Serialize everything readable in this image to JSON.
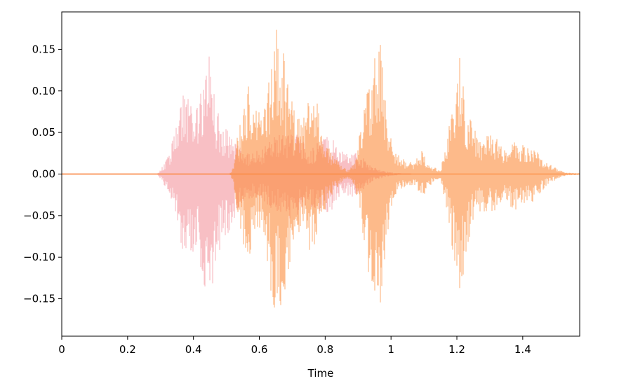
{
  "chart_data": {
    "type": "area",
    "title": "",
    "xlabel": "Time",
    "ylabel": "",
    "xlim": [
      0,
      1.573
    ],
    "ylim": [
      -0.195,
      0.195
    ],
    "x_ticks": [
      0,
      0.2,
      0.4,
      0.6,
      0.8,
      1,
      1.2,
      1.4
    ],
    "x_tick_labels": [
      "0",
      "0.2",
      "0.4",
      "0.6",
      "0.8",
      "1",
      "1.2",
      "1.4"
    ],
    "y_ticks": [
      0.15,
      0.1,
      0.05,
      0.0,
      -0.05,
      -0.1,
      -0.15
    ],
    "y_tick_labels": [
      "0.15",
      "0.10",
      "0.05",
      "0.00",
      "−0.05",
      "−0.10",
      "−0.15"
    ],
    "grid": false,
    "legend": "none",
    "series": [
      {
        "color": "#f4949c",
        "opacity": 0.6,
        "extent": [
          0,
          1.06
        ],
        "envelope_x": [
          0.0,
          0.29,
          0.31,
          0.33,
          0.35,
          0.37,
          0.39,
          0.41,
          0.43,
          0.45,
          0.47,
          0.49,
          0.51,
          0.53,
          0.55,
          0.57,
          0.6,
          0.63,
          0.66,
          0.69,
          0.72,
          0.75,
          0.78,
          0.8,
          0.82,
          0.84,
          0.86,
          0.88,
          0.9,
          0.92,
          0.94,
          0.97,
          1.0,
          1.03,
          1.06
        ],
        "envelope_top": [
          0.0,
          0.0,
          0.012,
          0.03,
          0.06,
          0.105,
          0.1,
          0.08,
          0.11,
          0.158,
          0.08,
          0.06,
          0.05,
          0.04,
          0.03,
          0.025,
          0.03,
          0.04,
          0.05,
          0.055,
          0.05,
          0.03,
          0.04,
          0.045,
          0.045,
          0.03,
          0.025,
          0.028,
          0.025,
          0.018,
          0.01,
          0.005,
          0.002,
          0.001,
          0.0
        ],
        "envelope_bottom": [
          0.0,
          0.0,
          0.012,
          0.03,
          0.06,
          0.1,
          0.1,
          0.085,
          0.13,
          0.158,
          0.11,
          0.08,
          0.07,
          0.05,
          0.04,
          0.03,
          0.03,
          0.04,
          0.05,
          0.055,
          0.05,
          0.04,
          0.045,
          0.05,
          0.045,
          0.03,
          0.025,
          0.03,
          0.025,
          0.018,
          0.01,
          0.005,
          0.002,
          0.001,
          0.0
        ]
      },
      {
        "color": "#fb8c3c",
        "opacity": 0.6,
        "extent": [
          0,
          1.573
        ],
        "envelope_x": [
          0.0,
          0.51,
          0.52,
          0.53,
          0.55,
          0.57,
          0.59,
          0.61,
          0.63,
          0.65,
          0.67,
          0.69,
          0.71,
          0.73,
          0.75,
          0.77,
          0.79,
          0.81,
          0.83,
          0.85,
          0.87,
          0.89,
          0.91,
          0.93,
          0.95,
          0.97,
          0.99,
          1.01,
          1.03,
          1.05,
          1.07,
          1.09,
          1.11,
          1.13,
          1.15,
          1.17,
          1.19,
          1.21,
          1.23,
          1.25,
          1.27,
          1.29,
          1.31,
          1.33,
          1.35,
          1.37,
          1.39,
          1.41,
          1.43,
          1.45,
          1.47,
          1.49,
          1.51,
          1.53,
          1.573
        ],
        "envelope_top": [
          0.0,
          0.0,
          0.01,
          0.04,
          0.085,
          0.115,
          0.08,
          0.07,
          0.13,
          0.178,
          0.155,
          0.1,
          0.075,
          0.07,
          0.09,
          0.1,
          0.05,
          0.035,
          0.02,
          0.01,
          0.005,
          0.015,
          0.06,
          0.11,
          0.14,
          0.16,
          0.06,
          0.03,
          0.02,
          0.015,
          0.015,
          0.03,
          0.02,
          0.008,
          0.006,
          0.045,
          0.105,
          0.15,
          0.08,
          0.055,
          0.045,
          0.05,
          0.045,
          0.04,
          0.03,
          0.045,
          0.04,
          0.04,
          0.035,
          0.025,
          0.015,
          0.01,
          0.005,
          0.002,
          0.001
        ],
        "envelope_bottom": [
          0.0,
          0.0,
          0.01,
          0.04,
          0.085,
          0.1,
          0.08,
          0.06,
          0.13,
          0.178,
          0.155,
          0.12,
          0.08,
          0.075,
          0.09,
          0.1,
          0.05,
          0.035,
          0.02,
          0.01,
          0.005,
          0.015,
          0.06,
          0.12,
          0.15,
          0.162,
          0.07,
          0.03,
          0.02,
          0.015,
          0.015,
          0.03,
          0.02,
          0.008,
          0.006,
          0.045,
          0.105,
          0.15,
          0.09,
          0.06,
          0.045,
          0.05,
          0.045,
          0.04,
          0.03,
          0.045,
          0.04,
          0.04,
          0.035,
          0.025,
          0.015,
          0.01,
          0.005,
          0.002,
          0.001
        ]
      }
    ]
  }
}
